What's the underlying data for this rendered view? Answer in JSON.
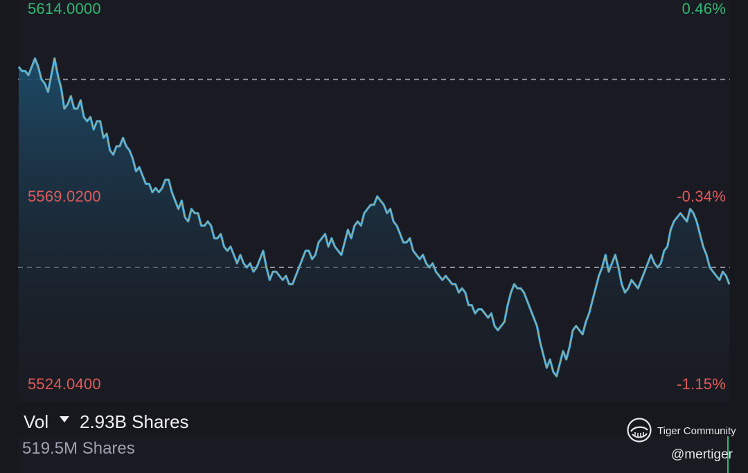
{
  "chart_data": {
    "type": "area",
    "title": "",
    "xlabel": "",
    "ylabel": "",
    "ylim": [
      5524.04,
      5614.0
    ],
    "reference_price": 5587.0,
    "y_axis_left": {
      "top": "5614.0000",
      "middle": "5569.0200",
      "bottom": "5524.0400"
    },
    "y_axis_right": {
      "top": "0.46%",
      "middle": "-0.34%",
      "bottom": "-1.15%"
    },
    "dashed_levels": [
      5597.0,
      5552.0
    ],
    "grid": false,
    "colors": {
      "line": "#3aa8e0",
      "line_inner": "#d4b36a",
      "fill_top": "#1d4d6b",
      "fill_bottom": "#1a1b22",
      "up": "#2eb872",
      "down": "#e05a5a",
      "dash": "#9a9ca6"
    },
    "series": [
      {
        "values": [
          5600,
          5599,
          5599,
          5598,
          5600,
          5602,
          5600,
          5597,
          5596,
          5594,
          5598,
          5602,
          5598,
          5595,
          5590,
          5591,
          5593,
          5590,
          5590,
          5592,
          5588,
          5587,
          5588,
          5585,
          5587,
          5587,
          5583,
          5584,
          5580,
          5579,
          5581,
          5581,
          5583,
          5581,
          5580,
          5578,
          5575,
          5576,
          5574,
          5572,
          5572,
          5570,
          5571,
          5570,
          5571,
          5573,
          5573,
          5570,
          5568,
          5566,
          5568,
          5564,
          5563,
          5566,
          5565,
          5565,
          5562,
          5562,
          5563,
          5562,
          5559,
          5559,
          5560,
          5557,
          5556,
          5557,
          5555,
          5553,
          5555,
          5553,
          5552,
          5553,
          5551,
          5552,
          5554,
          5556,
          5552,
          5549,
          5551,
          5551,
          5550,
          5549,
          5550,
          5548,
          5548,
          5550,
          5552,
          5554,
          5556,
          5556,
          5554,
          5555,
          5558,
          5559,
          5560,
          5557,
          5559,
          5557,
          5556,
          5555,
          5558,
          5561,
          5559,
          5562,
          5563,
          5562,
          5565,
          5566,
          5567,
          5567,
          5569,
          5568,
          5567,
          5565,
          5566,
          5563,
          5562,
          5560,
          5558,
          5558,
          5559,
          5556,
          5555,
          5554,
          5555,
          5553,
          5552,
          5553,
          5551,
          5550,
          5549,
          5550,
          5549,
          5548,
          5548,
          5546,
          5547,
          5546,
          5543,
          5543,
          5541,
          5542,
          5542,
          5541,
          5540,
          5541,
          5538,
          5537,
          5538,
          5539,
          5543,
          5546,
          5548,
          5547,
          5547,
          5546,
          5544,
          5542,
          5540,
          5538,
          5534,
          5531,
          5528,
          5530,
          5527,
          5526,
          5529,
          5532,
          5530,
          5533,
          5537,
          5538,
          5537,
          5536,
          5539,
          5541,
          5544,
          5547,
          5550,
          5552,
          5555,
          5551,
          5553,
          5555,
          5552,
          5548,
          5546,
          5547,
          5549,
          5548,
          5547,
          5549,
          5551,
          5553,
          5555,
          5553,
          5552,
          5553,
          5556,
          5557,
          5561,
          5563,
          5564,
          5565,
          5564,
          5563,
          5566,
          5565,
          5563,
          5560,
          5557,
          5555,
          5552,
          5551,
          5550,
          5549,
          5551,
          5550,
          5548
        ]
      }
    ]
  },
  "volume": {
    "label": "Vol",
    "total": "2.93B Shares",
    "max": "519.5M Shares"
  },
  "brand": {
    "name": "Tiger Community",
    "handle": "@mertiger"
  }
}
